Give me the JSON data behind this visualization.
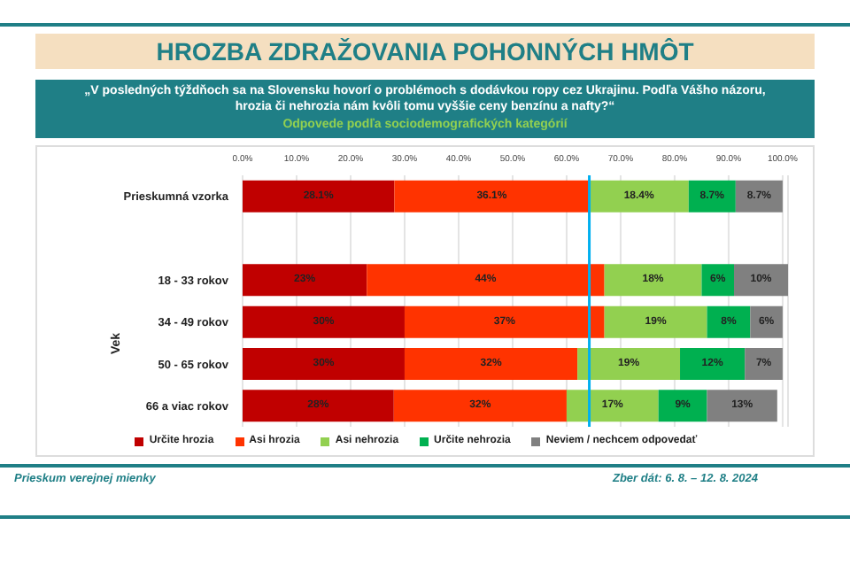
{
  "chart_data": {
    "type": "bar",
    "orientation": "horizontal",
    "stacked": true,
    "title": "HROZBA ZDRAŽOVANIA POHONNÝCH HMÔT",
    "subtitle": "„V posledných týždňoch sa na Slovensku hovorí o problémoch s dodávkou ropy cez Ukrajinu. Podľa Vášho názoru, hrozia či nehrozia nám kvôli tomu vyššie ceny benzínu a nafty?“",
    "ylabel": "Vek",
    "categories": [
      "Prieskumná vzorka",
      null,
      "18 - 33 rokov",
      "34 - 49 rokov",
      "50 - 65 rokov",
      "66 a viac rokov"
    ],
    "series": [
      {
        "name": "Určite hrozia",
        "color": "#c00000",
        "values": [
          28.1,
          null,
          23,
          30,
          30,
          28
        ],
        "value_labels": [
          "28.1%",
          null,
          "23%",
          "30%",
          "30%",
          "28%"
        ]
      },
      {
        "name": "Asi hrozia",
        "color": "#ff3300",
        "values": [
          36.1,
          null,
          44,
          37,
          32,
          32
        ],
        "value_labels": [
          "36.1%",
          null,
          "44%",
          "37%",
          "32%",
          "32%"
        ]
      },
      {
        "name": "Asi nehrozia",
        "color": "#92d050",
        "values": [
          18.4,
          null,
          18,
          19,
          19,
          17
        ],
        "value_labels": [
          "18.4%",
          null,
          "18%",
          "19%",
          "19%",
          "17%"
        ]
      },
      {
        "name": "Určite nehrozia",
        "color": "#00b050",
        "values": [
          8.7,
          null,
          6,
          8,
          12,
          9
        ],
        "value_labels": [
          "8.7%",
          null,
          "6%",
          "8%",
          "12%",
          "9%"
        ]
      },
      {
        "name": "Neviem / nechcem odpovedať",
        "color": "#808080",
        "values": [
          8.7,
          null,
          10,
          6,
          7,
          13
        ],
        "value_labels": [
          "8.7%",
          null,
          "10%",
          "6%",
          "7%",
          "13%"
        ]
      }
    ],
    "xlim": [
      0,
      101
    ],
    "xticks": [
      {
        "value": 0,
        "label": "0.0%"
      },
      {
        "value": 10,
        "label": "10.0%"
      },
      {
        "value": 20,
        "label": "20.0%"
      },
      {
        "value": 30,
        "label": "30.0%"
      },
      {
        "value": 40,
        "label": "40.0%"
      },
      {
        "value": 50,
        "label": "50.0%"
      },
      {
        "value": 60,
        "label": "60.0%"
      },
      {
        "value": 70,
        "label": "70.0%"
      },
      {
        "value": 80,
        "label": "80.0%"
      },
      {
        "value": 90,
        "label": "90.0%"
      },
      {
        "value": 100,
        "label": "100.0%"
      }
    ],
    "ref_lines": [
      {
        "axis": "x",
        "value": 64.2,
        "color": "#00b0f0"
      }
    ],
    "grid": "x",
    "legend": "bottom",
    "annotations": [
      "Odpovede podľa sociodemografických kategórií",
      "Prieskum verejnej mienky",
      "Zber dát: 6. 8. – 12. 8. 2024"
    ]
  }
}
